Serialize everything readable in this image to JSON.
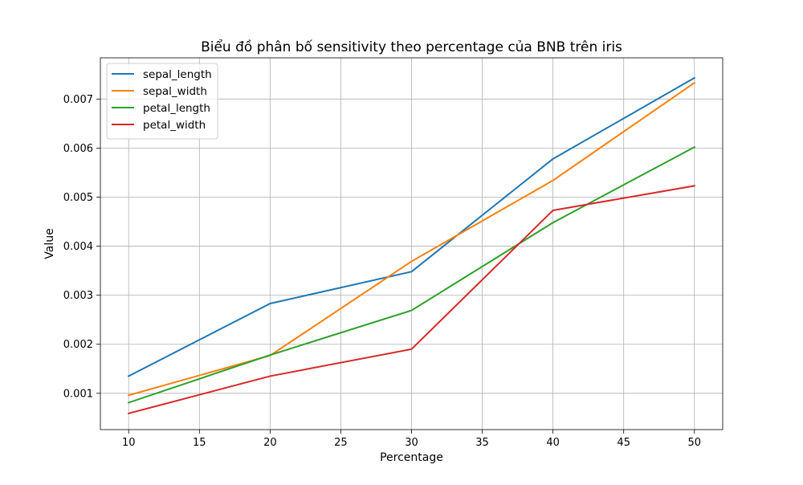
{
  "chart_data": {
    "type": "line",
    "title": "Biểu đồ phân bố sensitivity theo percentage của BNB trên iris",
    "xlabel": "Percentage",
    "ylabel": "Value",
    "x": [
      10,
      20,
      30,
      40,
      50
    ],
    "xlim": [
      8,
      52
    ],
    "ylim": [
      0.00026,
      0.00784
    ],
    "xticks": [
      10,
      15,
      20,
      25,
      30,
      35,
      40,
      45,
      50
    ],
    "yticks": [
      0.001,
      0.002,
      0.003,
      0.004,
      0.005,
      0.006,
      0.007
    ],
    "ytick_labels": [
      "0.001",
      "0.002",
      "0.003",
      "0.004",
      "0.005",
      "0.006",
      "0.007"
    ],
    "grid": true,
    "legend_position": "top-left",
    "series": [
      {
        "name": "sepal_length",
        "color": "#1f77b4",
        "values": [
          0.00135,
          0.00283,
          0.00348,
          0.00578,
          0.00743
        ]
      },
      {
        "name": "sepal_width",
        "color": "#ff7f0e",
        "values": [
          0.00096,
          0.00177,
          0.00369,
          0.00534,
          0.00733
        ]
      },
      {
        "name": "petal_length",
        "color": "#2ca02c",
        "values": [
          0.00081,
          0.00178,
          0.00269,
          0.00448,
          0.00602
        ]
      },
      {
        "name": "petal_width",
        "color": "#d62728",
        "values": [
          0.00059,
          0.00135,
          0.0019,
          0.00473,
          0.00523
        ]
      }
    ]
  }
}
